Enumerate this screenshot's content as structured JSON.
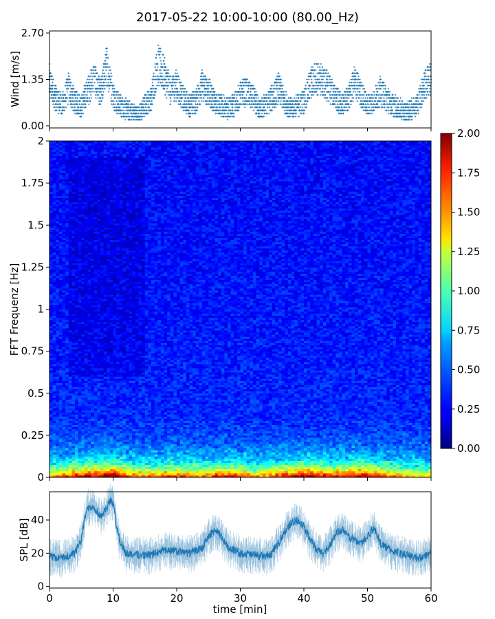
{
  "title": "2017-05-22 10:00-10:00 (80.00_Hz)",
  "colors": {
    "series": "#1f77b4",
    "axis": "#000000",
    "background": "#ffffff"
  },
  "chart_data": [
    {
      "type": "scatter",
      "panel": "wind",
      "ylabel": "Wind [m/s]",
      "xlim": [
        0,
        60
      ],
      "ylim": [
        0,
        2.7
      ],
      "yticks": [
        "0.00",
        "1.35",
        "2.70"
      ],
      "marker": "+",
      "series": [
        {
          "x": [
            0,
            1,
            2,
            3,
            4,
            5,
            6,
            7,
            8,
            9,
            10,
            11,
            12,
            13,
            14,
            15,
            16,
            17,
            18,
            19,
            20,
            21,
            22,
            23,
            24,
            25,
            26,
            27,
            28,
            29,
            30,
            31,
            32,
            33,
            34,
            35,
            36,
            37,
            38,
            39,
            40,
            41,
            42,
            43,
            44,
            45,
            46,
            47,
            48,
            49,
            50,
            51,
            52,
            53,
            54,
            55,
            56,
            57,
            58,
            59,
            60
          ],
          "values": [
            1.3,
            0.8,
            0.6,
            1.1,
            0.7,
            0.6,
            1.0,
            1.4,
            0.9,
            1.8,
            0.9,
            0.6,
            0.5,
            0.4,
            0.3,
            0.6,
            0.8,
            1.8,
            1.5,
            1.0,
            1.2,
            0.8,
            0.6,
            0.7,
            1.2,
            1.0,
            0.7,
            0.6,
            0.5,
            0.6,
            0.9,
            1.0,
            0.8,
            0.5,
            0.6,
            0.8,
            1.1,
            0.7,
            0.5,
            0.6,
            0.7,
            1.2,
            1.4,
            1.3,
            1.1,
            0.8,
            0.6,
            0.8,
            1.3,
            0.9,
            0.6,
            0.7,
            1.0,
            0.8,
            0.6,
            0.5,
            0.4,
            0.5,
            0.7,
            1.2,
            1.4
          ]
        }
      ]
    },
    {
      "type": "heatmap",
      "panel": "spectrogram",
      "ylabel": "FFT Frequenz [Hz]",
      "xlim": [
        0,
        60
      ],
      "ylim": [
        0,
        2
      ],
      "yticks": [
        "0",
        "0.25",
        "0.5",
        "0.75",
        "1",
        "1.25",
        "1.5",
        "1.75",
        "2"
      ],
      "colorbar": {
        "vmin": 0,
        "vmax": 2,
        "ticks": [
          "0.00",
          "0.25",
          "0.50",
          "0.75",
          "1.00",
          "1.25",
          "1.50",
          "1.75",
          "2.00"
        ],
        "colormap": "jet"
      },
      "time_min": [
        0,
        2,
        4,
        6,
        8,
        10,
        12,
        14,
        16,
        18,
        20,
        22,
        24,
        26,
        28,
        30,
        32,
        34,
        36,
        38,
        40,
        42,
        44,
        46,
        48,
        50,
        52,
        54,
        56,
        58,
        60
      ],
      "low_freq_level": [
        1.2,
        1.4,
        1.6,
        1.7,
        1.8,
        1.9,
        1.5,
        1.4,
        1.3,
        1.4,
        1.5,
        1.4,
        1.3,
        1.5,
        1.6,
        1.5,
        1.2,
        1.3,
        1.5,
        1.6,
        1.9,
        1.7,
        1.5,
        1.6,
        1.8,
        1.7,
        1.5,
        1.3,
        1.2,
        1.1,
        1.0
      ]
    },
    {
      "type": "line",
      "panel": "spl",
      "ylabel": "SPL [dB]",
      "xlabel": "time [min]",
      "xlim": [
        0,
        60
      ],
      "ylim": [
        -1,
        57
      ],
      "yticks": [
        "0",
        "20",
        "40"
      ],
      "xticks": [
        "0",
        "10",
        "20",
        "30",
        "40",
        "50",
        "60"
      ],
      "series": [
        {
          "x": [
            0,
            2,
            4,
            5,
            5.5,
            6,
            7,
            8,
            9,
            9.5,
            10,
            10.5,
            11,
            12,
            14,
            16,
            18,
            20,
            22,
            24,
            25,
            26,
            27,
            28,
            30,
            32,
            34,
            35,
            36,
            37,
            38,
            39,
            40,
            41,
            42,
            43,
            44,
            45,
            46,
            47,
            48,
            49,
            50,
            51,
            52,
            54,
            56,
            58,
            60
          ],
          "values": [
            18,
            17,
            20,
            28,
            40,
            48,
            48,
            42,
            47,
            52,
            50,
            38,
            28,
            20,
            19,
            19,
            22,
            21,
            20,
            23,
            30,
            34,
            30,
            24,
            20,
            19,
            18,
            20,
            26,
            33,
            38,
            40,
            36,
            28,
            22,
            20,
            24,
            32,
            34,
            30,
            28,
            26,
            30,
            36,
            26,
            21,
            19,
            17,
            20
          ]
        }
      ]
    }
  ]
}
